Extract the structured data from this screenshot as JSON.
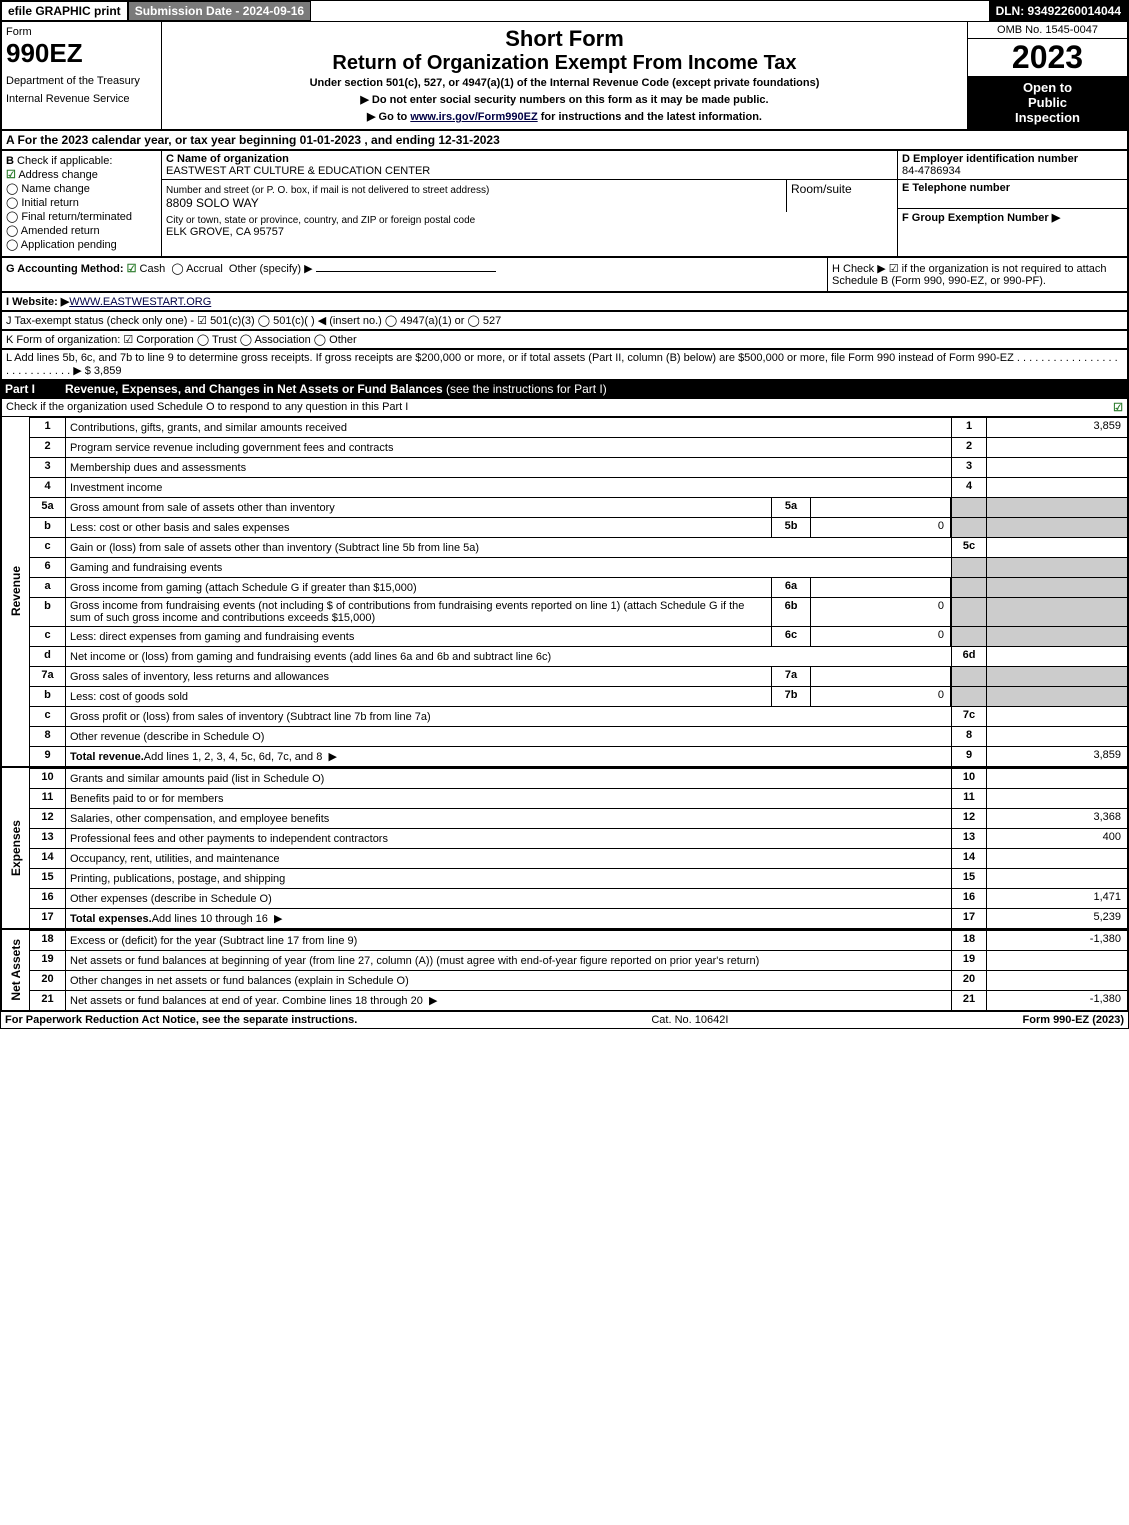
{
  "topbar": {
    "efile": "efile GRAPHIC print",
    "submission": "Submission Date - 2024-09-16",
    "dln": "DLN: 93492260014044"
  },
  "header": {
    "form_label": "Form",
    "form_number": "990EZ",
    "dept": "Department of the Treasury",
    "irs": "Internal Revenue Service",
    "short_form": "Short Form",
    "return_title": "Return of Organization Exempt From Income Tax",
    "under": "Under section 501(c), 527, or 4947(a)(1) of the Internal Revenue Code (except private foundations)",
    "note1": "▶ Do not enter social security numbers on this form as it may be made public.",
    "note2_pre": "▶ Go to ",
    "note2_link": "www.irs.gov/Form990EZ",
    "note2_post": " for instructions and the latest information.",
    "omb": "OMB No. 1545-0047",
    "year": "2023",
    "inspection1": "Open to",
    "inspection2": "Public",
    "inspection3": "Inspection"
  },
  "line_a": "A  For the 2023 calendar year, or tax year beginning 01-01-2023 , and ending 12-31-2023",
  "section_b": {
    "label": "B",
    "check_label": "Check if applicable:",
    "items": [
      "Address change",
      "Name change",
      "Initial return",
      "Final return/terminated",
      "Amended return",
      "Application pending"
    ],
    "checked_idx": 0
  },
  "section_c": {
    "name_label": "C Name of organization",
    "name_value": "EASTWEST ART CULTURE & EDUCATION CENTER",
    "street_label": "Number and street (or P. O. box, if mail is not delivered to street address)",
    "street_value": "8809 SOLO WAY",
    "room_label": "Room/suite",
    "city_label": "City or town, state or province, country, and ZIP or foreign postal code",
    "city_value": "ELK GROVE, CA  95757"
  },
  "section_de": {
    "d_label": "D Employer identification number",
    "d_value": "84-4786934",
    "e_label": "E Telephone number",
    "f_label": "F Group Exemption Number  ▶"
  },
  "section_g": {
    "label": "G Accounting Method:",
    "cash": "Cash",
    "accrual": "Accrual",
    "other": "Other (specify) ▶"
  },
  "section_h": {
    "text": "H  Check ▶ ☑ if the organization is not required to attach Schedule B (Form 990, 990-EZ, or 990-PF)."
  },
  "line_i_label": "I Website: ▶",
  "line_i_value": "WWW.EASTWESTART.ORG",
  "line_j": "J Tax-exempt status (check only one) - ☑ 501(c)(3) ◯ 501(c)(  ) ◀ (insert no.) ◯ 4947(a)(1) or ◯ 527",
  "line_k": "K Form of organization:  ☑ Corporation  ◯ Trust  ◯ Association  ◯ Other",
  "line_l": "L Add lines 5b, 6c, and 7b to line 9 to determine gross receipts. If gross receipts are $200,000 or more, or if total assets (Part II, column (B) below) are $500,000 or more, file Form 990 instead of Form 990-EZ . . . . . . . . . . . . . . . . . . . . . . . . . . . . ▶ $ 3,859",
  "part1": {
    "label": "Part I",
    "title": "Revenue, Expenses, and Changes in Net Assets or Fund Balances",
    "instr": " (see the instructions for Part I)",
    "schedo": "Check if the organization used Schedule O to respond to any question in this Part I",
    "schedo_checked": "☑"
  },
  "revenue": [
    {
      "n": "1",
      "d": "Contributions, gifts, grants, and similar amounts received",
      "r": "1",
      "v": "3,859"
    },
    {
      "n": "2",
      "d": "Program service revenue including government fees and contracts",
      "r": "2",
      "v": ""
    },
    {
      "n": "3",
      "d": "Membership dues and assessments",
      "r": "3",
      "v": ""
    },
    {
      "n": "4",
      "d": "Investment income",
      "r": "4",
      "v": ""
    },
    {
      "n": "5a",
      "d": "Gross amount from sale of assets other than inventory",
      "sub": "5a",
      "sv": "",
      "grey": true
    },
    {
      "n": "b",
      "d": "Less: cost or other basis and sales expenses",
      "sub": "5b",
      "sv": "0",
      "grey": true
    },
    {
      "n": "c",
      "d": "Gain or (loss) from sale of assets other than inventory (Subtract line 5b from line 5a)",
      "r": "5c",
      "v": ""
    },
    {
      "n": "6",
      "d": "Gaming and fundraising events",
      "grey": true
    },
    {
      "n": "a",
      "d": "Gross income from gaming (attach Schedule G if greater than $15,000)",
      "sub": "6a",
      "sv": "",
      "grey": true
    },
    {
      "n": "b",
      "d": "Gross income from fundraising events (not including $               of contributions from fundraising events reported on line 1) (attach Schedule G if the sum of such gross income and contributions exceeds $15,000)",
      "sub": "6b",
      "sv": "0",
      "grey": true
    },
    {
      "n": "c",
      "d": "Less: direct expenses from gaming and fundraising events",
      "sub": "6c",
      "sv": "0",
      "grey": true
    },
    {
      "n": "d",
      "d": "Net income or (loss) from gaming and fundraising events (add lines 6a and 6b and subtract line 6c)",
      "r": "6d",
      "v": ""
    },
    {
      "n": "7a",
      "d": "Gross sales of inventory, less returns and allowances",
      "sub": "7a",
      "sv": "",
      "grey": true
    },
    {
      "n": "b",
      "d": "Less: cost of goods sold",
      "sub": "7b",
      "sv": "0",
      "grey": true
    },
    {
      "n": "c",
      "d": "Gross profit or (loss) from sales of inventory (Subtract line 7b from line 7a)",
      "r": "7c",
      "v": ""
    },
    {
      "n": "8",
      "d": "Other revenue (describe in Schedule O)",
      "r": "8",
      "v": ""
    },
    {
      "n": "9",
      "d": "Total revenue. Add lines 1, 2, 3, 4, 5c, 6d, 7c, and 8",
      "r": "9",
      "v": "3,859",
      "bold": true,
      "arrow": true
    }
  ],
  "expenses": [
    {
      "n": "10",
      "d": "Grants and similar amounts paid (list in Schedule O)",
      "r": "10",
      "v": ""
    },
    {
      "n": "11",
      "d": "Benefits paid to or for members",
      "r": "11",
      "v": ""
    },
    {
      "n": "12",
      "d": "Salaries, other compensation, and employee benefits",
      "r": "12",
      "v": "3,368"
    },
    {
      "n": "13",
      "d": "Professional fees and other payments to independent contractors",
      "r": "13",
      "v": "400"
    },
    {
      "n": "14",
      "d": "Occupancy, rent, utilities, and maintenance",
      "r": "14",
      "v": ""
    },
    {
      "n": "15",
      "d": "Printing, publications, postage, and shipping",
      "r": "15",
      "v": ""
    },
    {
      "n": "16",
      "d": "Other expenses (describe in Schedule O)",
      "r": "16",
      "v": "1,471"
    },
    {
      "n": "17",
      "d": "Total expenses. Add lines 10 through 16",
      "r": "17",
      "v": "5,239",
      "bold": true,
      "arrow": true
    }
  ],
  "netassets": [
    {
      "n": "18",
      "d": "Excess or (deficit) for the year (Subtract line 17 from line 9)",
      "r": "18",
      "v": "-1,380"
    },
    {
      "n": "19",
      "d": "Net assets or fund balances at beginning of year (from line 27, column (A)) (must agree with end-of-year figure reported on prior year's return)",
      "r": "19",
      "v": ""
    },
    {
      "n": "20",
      "d": "Other changes in net assets or fund balances (explain in Schedule O)",
      "r": "20",
      "v": ""
    },
    {
      "n": "21",
      "d": "Net assets or fund balances at end of year. Combine lines 18 through 20",
      "r": "21",
      "v": "-1,380",
      "arrow": true
    }
  ],
  "section_labels": {
    "revenue": "Revenue",
    "expenses": "Expenses",
    "netassets": "Net Assets"
  },
  "footer": {
    "left": "For Paperwork Reduction Act Notice, see the separate instructions.",
    "center": "Cat. No. 10642I",
    "right_pre": "Form ",
    "right_form": "990-EZ",
    "right_year": " (2023)"
  },
  "colors": {
    "green": "#2a7a2a",
    "grey": "#cccccc",
    "black": "#000000",
    "darkgrey": "#7a7a7a"
  }
}
